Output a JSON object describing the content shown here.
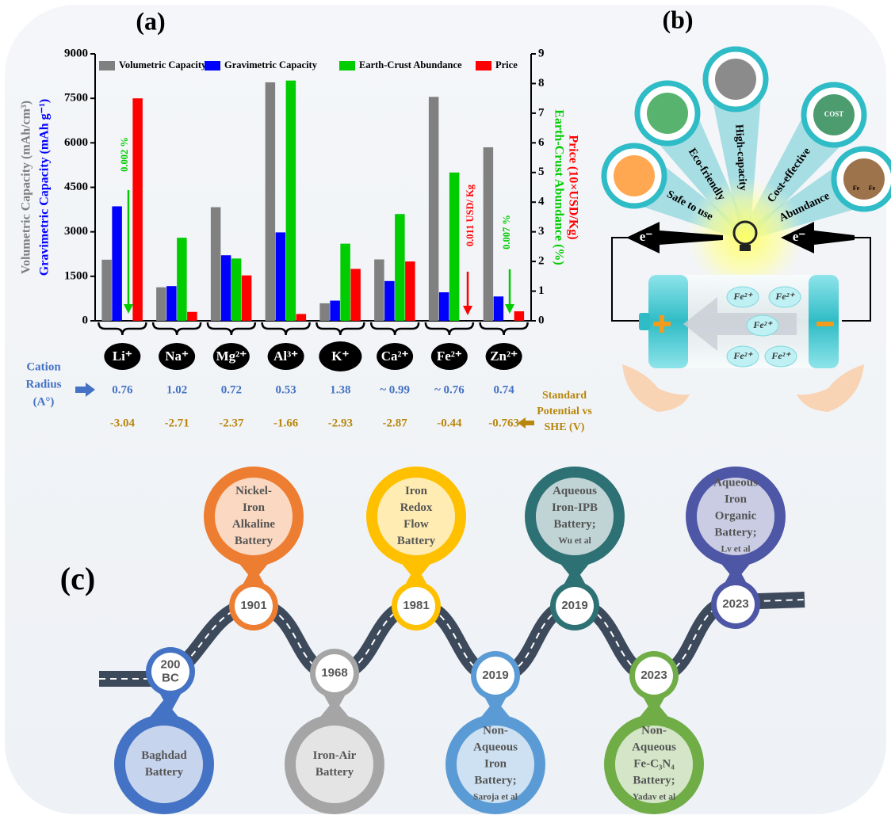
{
  "panel_labels": {
    "a": "(a)",
    "b": "(b)",
    "c": "(c)"
  },
  "chart_data": {
    "type": "bar",
    "categories": [
      "Li⁺",
      "Na⁺",
      "Mg²⁺",
      "Al³⁺",
      "K⁺",
      "Ca²⁺",
      "Fe²⁺",
      "Zn²⁺"
    ],
    "series": [
      {
        "name": "Volumetric Capacity",
        "color": "#808080",
        "values": [
          2060,
          1130,
          3830,
          8040,
          590,
          2070,
          7550,
          5850
        ]
      },
      {
        "name": "Gravimetric Capacity",
        "color": "#0000ff",
        "values": [
          3860,
          1170,
          2210,
          2980,
          680,
          1340,
          960,
          820
        ]
      },
      {
        "name": "Earth-Crust Abundance",
        "color": "#00cc00",
        "axis": "y2",
        "values": [
          null,
          2.8,
          2.1,
          8.1,
          2.6,
          3.6,
          5.0,
          null
        ]
      },
      {
        "name": "Price",
        "color": "#ff0000",
        "axis": "y2",
        "values": [
          7.5,
          0.3,
          1.53,
          0.23,
          1.75,
          2.0,
          null,
          0.32
        ]
      }
    ],
    "ylim": [
      0,
      9000
    ],
    "yticks": [
      0,
      1500,
      3000,
      4500,
      6000,
      7500,
      9000
    ],
    "y2lim": [
      0,
      9
    ],
    "y2ticks": [
      0,
      1,
      2,
      3,
      4,
      5,
      6,
      7,
      8,
      9
    ],
    "ylabels": [
      {
        "text": "Volumetric Capacity (mAh/cm³)",
        "color": "#808080"
      },
      {
        "text": "Gravimetric Capacity (mAh g⁻¹)",
        "color": "#0000ff"
      }
    ],
    "y2labels": [
      {
        "text": "Price (10×USD/Kg)",
        "color": "#ff0000"
      },
      {
        "text": "Earth-Crust Abundance (%)",
        "color": "#00cc00"
      }
    ],
    "annotations": [
      {
        "text": "0.002 %",
        "color": "#00cc00"
      },
      {
        "text": "0.011 USD/ Kg",
        "color": "#ff0000"
      },
      {
        "text": "0.007 %",
        "color": "#00cc00"
      }
    ],
    "cation_radius": {
      "label": [
        "Cation",
        "Radius",
        "(A°)"
      ],
      "color": "#4472c4",
      "values": [
        "0.76",
        "1.02",
        "0.72",
        "0.53",
        "1.38",
        "~ 0.99",
        "~ 0.76",
        "0.74"
      ]
    },
    "standard_potential": {
      "label": [
        "Standard",
        "Potential vs",
        "SHE (V)"
      ],
      "color": "#b8860b",
      "values": [
        "-3.04",
        "-2.71",
        "-2.37",
        "-1.66",
        "-2.93",
        "-2.87",
        "-0.44",
        "-0.763"
      ]
    }
  },
  "diagram": {
    "features": [
      "Safe to use",
      "Eco-friendly",
      "High-capacity",
      "Cost-effective",
      "Abundance"
    ],
    "electron": "e⁻",
    "ion": "Fe²⁺",
    "cost_icon": "COST",
    "bag_label": "Fe"
  },
  "timeline": {
    "events": [
      {
        "year": [
          "200",
          "BC"
        ],
        "lines": [
          "Baghdad",
          "Battery"
        ],
        "color": "#4472c4"
      },
      {
        "year": [
          "1901"
        ],
        "lines": [
          "Nickel-",
          "Iron",
          "Alkaline",
          "Battery"
        ],
        "color": "#ed7d31"
      },
      {
        "year": [
          "1968"
        ],
        "lines": [
          "Iron-Air",
          "Battery"
        ],
        "color": "#a5a5a5"
      },
      {
        "year": [
          "1981"
        ],
        "lines": [
          "Iron",
          "Redox",
          "Flow",
          "Battery"
        ],
        "color": "#ffc000"
      },
      {
        "year": [
          "2019"
        ],
        "lines": [
          "Non-",
          "Aqueous",
          "Iron",
          "Battery;"
        ],
        "author": "Saroja et al",
        "color": "#5b9bd5"
      },
      {
        "year": [
          "2019"
        ],
        "lines": [
          "Aqueous",
          "Iron-IPB",
          "Battery;"
        ],
        "author": "Wu et al",
        "color": "#2e7175"
      },
      {
        "year": [
          "2023"
        ],
        "lines": [
          "Non-",
          "Aqueous",
          "Fe-C₃N₄",
          "Battery;"
        ],
        "author": "Yadav et al",
        "color": "#70ad47"
      },
      {
        "year": [
          "2023"
        ],
        "lines": [
          "Aqueous",
          "Iron",
          "Organic",
          "Battery;"
        ],
        "author": "Lv et al",
        "color": "#4e56a6"
      }
    ]
  }
}
